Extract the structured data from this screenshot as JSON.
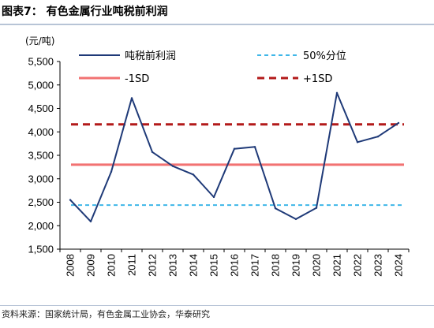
{
  "header": {
    "title": "图表7：  有色金属行业吨税前利润"
  },
  "footer": {
    "source": "资料来源：国家统计局，有色金属工业协会，华泰研究"
  },
  "chart_data": {
    "type": "line",
    "unit_label": "(元/吨)",
    "x": [
      "2008",
      "2009",
      "2010",
      "2011",
      "2012",
      "2013",
      "2014",
      "2015",
      "2016",
      "2017",
      "2018",
      "2019",
      "2020",
      "2021",
      "2022",
      "2023",
      "2024"
    ],
    "ylim": [
      1500,
      5500
    ],
    "yticks": [
      1500,
      2000,
      2500,
      3000,
      3500,
      4000,
      4500,
      5000,
      5500
    ],
    "ytick_labels": [
      "1,500",
      "2,000",
      "2,500",
      "3,000",
      "3,500",
      "4,000",
      "4,500",
      "5,000",
      "5,500"
    ],
    "grid": false,
    "legend_position": "top",
    "series": [
      {
        "name": "吨税前利润",
        "style": "solid",
        "color": "#1f3a78",
        "values": [
          2550,
          2090,
          3150,
          4720,
          3570,
          3270,
          3090,
          2610,
          3640,
          3680,
          2370,
          2140,
          2380,
          4830,
          3780,
          3900,
          4190
        ]
      },
      {
        "name": "50%分位",
        "style": "dashed",
        "color": "#3fb7e8",
        "constant": 2440
      },
      {
        "name": "-1SD",
        "style": "solid",
        "color": "#f27272",
        "constant": 3300
      },
      {
        "name": "+1SD",
        "style": "dashed",
        "color": "#b31a1a",
        "constant": 4160
      }
    ]
  }
}
